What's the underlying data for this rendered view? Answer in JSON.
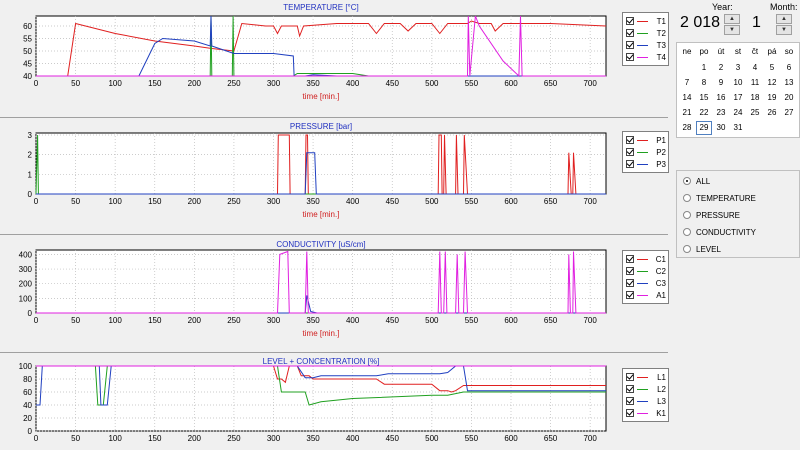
{
  "charts": [
    {
      "id": "temperature",
      "title": "TEMPERATURE [°C]",
      "xlabel": "time [min.]",
      "yticks": [
        "40",
        "45",
        "50",
        "55",
        "60"
      ],
      "ymin": 40,
      "ymax": 64,
      "series": [
        {
          "name": "T1",
          "color": "#e02020",
          "points": [
            [
              0,
              40
            ],
            [
              10,
              40
            ],
            [
              40,
              40
            ],
            [
              50,
              61
            ],
            [
              100,
              57
            ],
            [
              150,
              54
            ],
            [
              200,
              52
            ],
            [
              222,
              51
            ],
            [
              250,
              50
            ],
            [
              260,
              61
            ],
            [
              290,
              60
            ],
            [
              300,
              60
            ],
            [
              305,
              57
            ],
            [
              310,
              60
            ],
            [
              330,
              60
            ],
            [
              333,
              56
            ],
            [
              338,
              60
            ],
            [
              380,
              61
            ],
            [
              420,
              61
            ],
            [
              430,
              57
            ],
            [
              440,
              61
            ],
            [
              460,
              61
            ],
            [
              470,
              58
            ],
            [
              480,
              61
            ],
            [
              500,
              61
            ],
            [
              510,
              57
            ],
            [
              520,
              61
            ],
            [
              545,
              61
            ],
            [
              550,
              62
            ],
            [
              560,
              61
            ],
            [
              575,
              61
            ],
            [
              580,
              58
            ],
            [
              590,
              61
            ],
            [
              615,
              61
            ],
            [
              650,
              61
            ],
            [
              720,
              60
            ]
          ]
        },
        {
          "name": "T2",
          "color": "#20a020",
          "points": [
            [
              0,
              40
            ],
            [
              220,
              40
            ],
            [
              221,
              64
            ],
            [
              222,
              40
            ],
            [
              248,
              40
            ],
            [
              249,
              64
            ],
            [
              250,
              40
            ],
            [
              325,
              40
            ],
            [
              330,
              41
            ],
            [
              400,
              41
            ],
            [
              420,
              40
            ],
            [
              720,
              40
            ]
          ]
        },
        {
          "name": "T3",
          "color": "#2040c0",
          "points": [
            [
              0,
              40
            ],
            [
              130,
              40
            ],
            [
              150,
              53
            ],
            [
              160,
              55
            ],
            [
              200,
              54
            ],
            [
              220,
              52
            ],
            [
              221,
              64
            ],
            [
              222,
              52
            ],
            [
              250,
              49
            ],
            [
              300,
              49
            ],
            [
              325,
              48
            ],
            [
              326,
              40
            ],
            [
              340,
              40
            ],
            [
              350,
              40.5
            ],
            [
              380,
              40
            ],
            [
              720,
              40
            ]
          ]
        },
        {
          "name": "T4",
          "color": "#e020e0",
          "points": [
            [
              0,
              40
            ],
            [
              545,
              40
            ],
            [
              546,
              64
            ],
            [
              548,
              40
            ],
            [
              555,
              64
            ],
            [
              560,
              60
            ],
            [
              590,
              46
            ],
            [
              610,
              40
            ],
            [
              612,
              64
            ],
            [
              614,
              40
            ],
            [
              720,
              40
            ]
          ]
        }
      ],
      "chart_data": {
        "type": "line",
        "xlim": [
          0,
          720
        ],
        "ylim": [
          40,
          64
        ]
      }
    },
    {
      "id": "pressure",
      "title": "PRESSURE [bar]",
      "xlabel": "time [min.]",
      "yticks": [
        "0",
        "1",
        "2",
        "3"
      ],
      "ymin": 0,
      "ymax": 3.1,
      "series": [
        {
          "name": "P1",
          "color": "#e02020",
          "points": [
            [
              0,
              0
            ],
            [
              305,
              0
            ],
            [
              306,
              3
            ],
            [
              320,
              3
            ],
            [
              321,
              0
            ],
            [
              340,
              0
            ],
            [
              341,
              3
            ],
            [
              343,
              3
            ],
            [
              344,
              0
            ],
            [
              508,
              0
            ],
            [
              509,
              3
            ],
            [
              512,
              3
            ],
            [
              513,
              0
            ],
            [
              515,
              0
            ],
            [
              516,
              3
            ],
            [
              518,
              0
            ],
            [
              530,
              0
            ],
            [
              531,
              3
            ],
            [
              533,
              0
            ],
            [
              540,
              0
            ],
            [
              541,
              3
            ],
            [
              545,
              0
            ],
            [
              672,
              0
            ],
            [
              673,
              2.1
            ],
            [
              676,
              0
            ],
            [
              678,
              0
            ],
            [
              679,
              2.1
            ],
            [
              682,
              0
            ],
            [
              720,
              0
            ]
          ]
        },
        {
          "name": "P2",
          "color": "#20a020",
          "points": [
            [
              0,
              0
            ],
            [
              2,
              3
            ],
            [
              3,
              0
            ],
            [
              720,
              0
            ]
          ]
        },
        {
          "name": "P3",
          "color": "#2040c0",
          "points": [
            [
              0,
              0
            ],
            [
              340,
              0
            ],
            [
              342,
              2.1
            ],
            [
              352,
              2.1
            ],
            [
              354,
              0
            ],
            [
              720,
              0
            ]
          ]
        }
      ],
      "chart_data": {
        "type": "line",
        "xlim": [
          0,
          720
        ],
        "ylim": [
          0,
          3.1
        ]
      }
    },
    {
      "id": "conductivity",
      "title": "CONDUCTIVITY [uS/cm]",
      "xlabel": "time [min.]",
      "yticks": [
        "0",
        "100",
        "200",
        "300",
        "400"
      ],
      "ymin": 0,
      "ymax": 430,
      "series": [
        {
          "name": "C1",
          "color": "#e02020",
          "points": [
            [
              0,
              0
            ],
            [
              720,
              0
            ]
          ]
        },
        {
          "name": "C2",
          "color": "#20a020",
          "points": [
            [
              0,
              0
            ],
            [
              720,
              0
            ]
          ]
        },
        {
          "name": "C3",
          "color": "#2040c0",
          "points": [
            [
              0,
              0
            ],
            [
              340,
              0
            ],
            [
              342,
              120
            ],
            [
              347,
              10
            ],
            [
              355,
              0
            ],
            [
              720,
              0
            ]
          ]
        },
        {
          "name": "A1",
          "color": "#e020e0",
          "points": [
            [
              0,
              0
            ],
            [
              305,
              0
            ],
            [
              308,
              400
            ],
            [
              318,
              420
            ],
            [
              320,
              0
            ],
            [
              340,
              0
            ],
            [
              342,
              420
            ],
            [
              344,
              0
            ],
            [
              508,
              0
            ],
            [
              510,
              420
            ],
            [
              512,
              0
            ],
            [
              515,
              0
            ],
            [
              517,
              420
            ],
            [
              519,
              0
            ],
            [
              530,
              0
            ],
            [
              532,
              400
            ],
            [
              534,
              0
            ],
            [
              540,
              0
            ],
            [
              542,
              420
            ],
            [
              545,
              0
            ],
            [
              672,
              0
            ],
            [
              673,
              400
            ],
            [
              675,
              0
            ],
            [
              678,
              0
            ],
            [
              679,
              420
            ],
            [
              682,
              0
            ],
            [
              720,
              0
            ]
          ]
        }
      ],
      "chart_data": {
        "type": "line",
        "xlim": [
          0,
          720
        ],
        "ylim": [
          0,
          430
        ]
      }
    },
    {
      "id": "level",
      "title": "LEVEL + CONCENTRATION [%]",
      "xlabel": "",
      "yticks": [
        "0",
        "20",
        "40",
        "60",
        "80",
        "100"
      ],
      "ymin": 0,
      "ymax": 100,
      "series": [
        {
          "name": "L1",
          "color": "#e02020",
          "points": [
            [
              0,
              100
            ],
            [
              300,
              100
            ],
            [
              305,
              80
            ],
            [
              310,
              80
            ],
            [
              315,
              75
            ],
            [
              320,
              100
            ],
            [
              330,
              100
            ],
            [
              335,
              85
            ],
            [
              345,
              85
            ],
            [
              350,
              80
            ],
            [
              430,
              80
            ],
            [
              440,
              72
            ],
            [
              500,
              72
            ],
            [
              510,
              62
            ],
            [
              520,
              62
            ],
            [
              525,
              60
            ],
            [
              530,
              62
            ],
            [
              540,
              70
            ],
            [
              720,
              70
            ]
          ]
        },
        {
          "name": "L2",
          "color": "#20a020",
          "points": [
            [
              0,
              100
            ],
            [
              75,
              100
            ],
            [
              78,
              40
            ],
            [
              85,
              40
            ],
            [
              90,
              100
            ],
            [
              300,
              100
            ],
            [
              305,
              100
            ],
            [
              310,
              60
            ],
            [
              340,
              60
            ],
            [
              345,
              40
            ],
            [
              360,
              45
            ],
            [
              400,
              50
            ],
            [
              500,
              55
            ],
            [
              520,
              55
            ],
            [
              540,
              60
            ],
            [
              720,
              60
            ]
          ]
        },
        {
          "name": "L3",
          "color": "#2040c0",
          "points": [
            [
              0,
              40
            ],
            [
              5,
              40
            ],
            [
              8,
              100
            ],
            [
              80,
              100
            ],
            [
              82,
              40
            ],
            [
              90,
              40
            ],
            [
              95,
              100
            ],
            [
              300,
              100
            ],
            [
              330,
              100
            ],
            [
              340,
              82
            ],
            [
              350,
              82
            ],
            [
              360,
              85
            ],
            [
              430,
              85
            ],
            [
              445,
              88
            ],
            [
              510,
              88
            ],
            [
              520,
              90
            ],
            [
              530,
              100
            ],
            [
              540,
              100
            ],
            [
              545,
              62
            ],
            [
              720,
              62
            ]
          ]
        },
        {
          "name": "K1",
          "color": "#e020e0",
          "points": [
            [
              0,
              100
            ],
            [
              720,
              100
            ]
          ]
        }
      ],
      "chart_data": {
        "type": "line",
        "xlim": [
          0,
          720
        ],
        "ylim": [
          0,
          100
        ]
      }
    }
  ],
  "xticks": [
    "0",
    "50",
    "100",
    "150",
    "200",
    "250",
    "300",
    "350",
    "400",
    "450",
    "500",
    "550",
    "600",
    "650",
    "700"
  ],
  "calendar": {
    "year_label": "Year:",
    "month_label": "Month:",
    "year_value": "2 018",
    "month_value": "1",
    "dow": [
      "ne",
      "po",
      "út",
      "st",
      "čt",
      "pá",
      "so"
    ],
    "weeks": [
      [
        "",
        "1",
        "2",
        "3",
        "4",
        "5",
        "6"
      ],
      [
        "7",
        "8",
        "9",
        "10",
        "11",
        "12",
        "13"
      ],
      [
        "14",
        "15",
        "16",
        "17",
        "18",
        "19",
        "20"
      ],
      [
        "21",
        "22",
        "23",
        "24",
        "25",
        "26",
        "27"
      ],
      [
        "28",
        "29",
        "30",
        "31",
        "",
        "",
        ""
      ]
    ],
    "selected_day": "29"
  },
  "filters": {
    "selected": "ALL",
    "options": [
      "ALL",
      "TEMPERATURE",
      "PRESSURE",
      "CONDUCTIVITY",
      "LEVEL"
    ]
  },
  "chart_data": [
    {
      "type": "line",
      "title": "TEMPERATURE [°C]",
      "xlabel": "time [min.]",
      "series_names": [
        "T1",
        "T2",
        "T3",
        "T4"
      ]
    },
    {
      "type": "line",
      "title": "PRESSURE [bar]",
      "xlabel": "time [min.]",
      "series_names": [
        "P1",
        "P2",
        "P3"
      ]
    },
    {
      "type": "line",
      "title": "CONDUCTIVITY [uS/cm]",
      "xlabel": "time [min.]",
      "series_names": [
        "C1",
        "C2",
        "C3",
        "A1"
      ]
    },
    {
      "type": "line",
      "title": "LEVEL + CONCENTRATION [%]",
      "xlabel": "",
      "series_names": [
        "L1",
        "L2",
        "L3",
        "K1"
      ]
    }
  ]
}
